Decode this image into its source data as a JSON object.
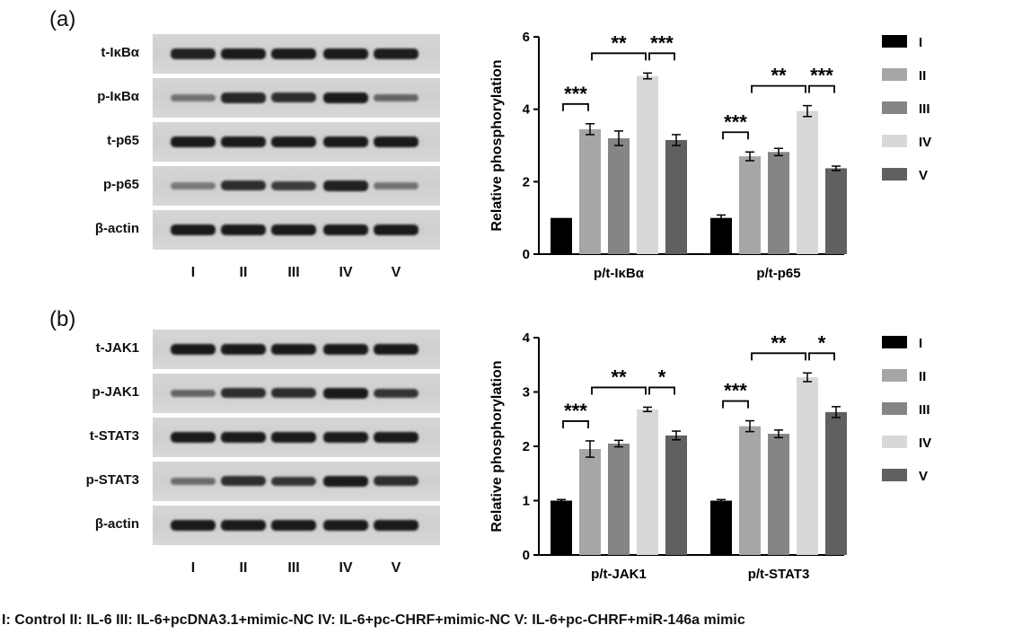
{
  "panels": [
    {
      "label": "(a)",
      "blot_rows": [
        "t-IκBα",
        "p-IκBα",
        "t-p65",
        "p-p65",
        "β-actin"
      ],
      "lanes": [
        "I",
        "II",
        "III",
        "IV",
        "V"
      ],
      "band_intensity": [
        [
          0.95,
          1.0,
          1.0,
          1.0,
          0.98
        ],
        [
          0.35,
          0.9,
          0.85,
          1.0,
          0.45
        ],
        [
          1.0,
          1.0,
          1.0,
          1.0,
          1.0
        ],
        [
          0.3,
          0.85,
          0.75,
          0.95,
          0.35
        ],
        [
          1.0,
          1.0,
          1.0,
          1.0,
          1.0
        ]
      ]
    },
    {
      "label": "(b)",
      "blot_rows": [
        "t-JAK1",
        "p-JAK1",
        "t-STAT3",
        "p-STAT3",
        "β-actin"
      ],
      "lanes": [
        "I",
        "II",
        "III",
        "IV",
        "V"
      ],
      "band_intensity": [
        [
          1.0,
          1.0,
          1.0,
          1.0,
          1.0
        ],
        [
          0.45,
          0.85,
          0.85,
          1.0,
          0.8
        ],
        [
          1.0,
          1.0,
          1.0,
          1.0,
          1.0
        ],
        [
          0.4,
          0.85,
          0.8,
          1.0,
          0.85
        ],
        [
          1.0,
          1.0,
          1.0,
          1.0,
          1.0
        ]
      ]
    }
  ],
  "chart_data": [
    {
      "type": "bar",
      "ylabel": "Relative phosphorylation",
      "ylim": [
        0,
        6
      ],
      "yticks": [
        0,
        2,
        4,
        6
      ],
      "categories": [
        "p/t-IκBα",
        "p/t-p65"
      ],
      "series": [
        {
          "name": "I",
          "color": "#000000",
          "values": [
            1.0,
            1.0
          ],
          "errors": [
            0.0,
            0.08
          ]
        },
        {
          "name": "II",
          "color": "#a6a6a6",
          "values": [
            3.45,
            2.7
          ],
          "errors": [
            0.15,
            0.12
          ]
        },
        {
          "name": "III",
          "color": "#858585",
          "values": [
            3.2,
            2.82
          ],
          "errors": [
            0.2,
            0.1
          ]
        },
        {
          "name": "IV",
          "color": "#d8d8d8",
          "values": [
            4.92,
            3.95
          ],
          "errors": [
            0.08,
            0.15
          ]
        },
        {
          "name": "V",
          "color": "#606060",
          "values": [
            3.15,
            2.37
          ],
          "errors": [
            0.15,
            0.06
          ]
        }
      ],
      "annotations": [
        {
          "group": 0,
          "from": 0,
          "to": 1,
          "text": "***"
        },
        {
          "group": 0,
          "from": 1,
          "to": 3,
          "text": "**"
        },
        {
          "group": 0,
          "from": 3,
          "to": 4,
          "text": "***"
        },
        {
          "group": 1,
          "from": 0,
          "to": 1,
          "text": "***"
        },
        {
          "group": 1,
          "from": 1,
          "to": 3,
          "text": "**"
        },
        {
          "group": 1,
          "from": 3,
          "to": 4,
          "text": "***"
        }
      ],
      "legend_position": "right"
    },
    {
      "type": "bar",
      "ylabel": "Relative phosphorylation",
      "ylim": [
        0,
        4
      ],
      "yticks": [
        0,
        1,
        2,
        3,
        4
      ],
      "categories": [
        "p/t-JAK1",
        "p/t-STAT3"
      ],
      "series": [
        {
          "name": "I",
          "color": "#000000",
          "values": [
            1.0,
            1.0
          ],
          "errors": [
            0.02,
            0.02
          ]
        },
        {
          "name": "II",
          "color": "#a6a6a6",
          "values": [
            1.95,
            2.37
          ],
          "errors": [
            0.15,
            0.1
          ]
        },
        {
          "name": "III",
          "color": "#858585",
          "values": [
            2.05,
            2.23
          ],
          "errors": [
            0.06,
            0.07
          ]
        },
        {
          "name": "IV",
          "color": "#d8d8d8",
          "values": [
            2.68,
            3.27
          ],
          "errors": [
            0.04,
            0.08
          ]
        },
        {
          "name": "V",
          "color": "#606060",
          "values": [
            2.2,
            2.63
          ],
          "errors": [
            0.08,
            0.1
          ]
        }
      ],
      "annotations": [
        {
          "group": 0,
          "from": 0,
          "to": 1,
          "text": "***"
        },
        {
          "group": 0,
          "from": 1,
          "to": 3,
          "text": "**"
        },
        {
          "group": 0,
          "from": 3,
          "to": 4,
          "text": "*"
        },
        {
          "group": 1,
          "from": 0,
          "to": 1,
          "text": "***"
        },
        {
          "group": 1,
          "from": 1,
          "to": 3,
          "text": "**"
        },
        {
          "group": 1,
          "from": 3,
          "to": 4,
          "text": "*"
        }
      ],
      "legend_position": "right"
    }
  ],
  "footer": "I: Control   II: IL-6   III: IL-6+pcDNA3.1+mimic-NC   IV: IL-6+pc-CHRF+mimic-NC   V: IL-6+pc-CHRF+miR-146a mimic"
}
